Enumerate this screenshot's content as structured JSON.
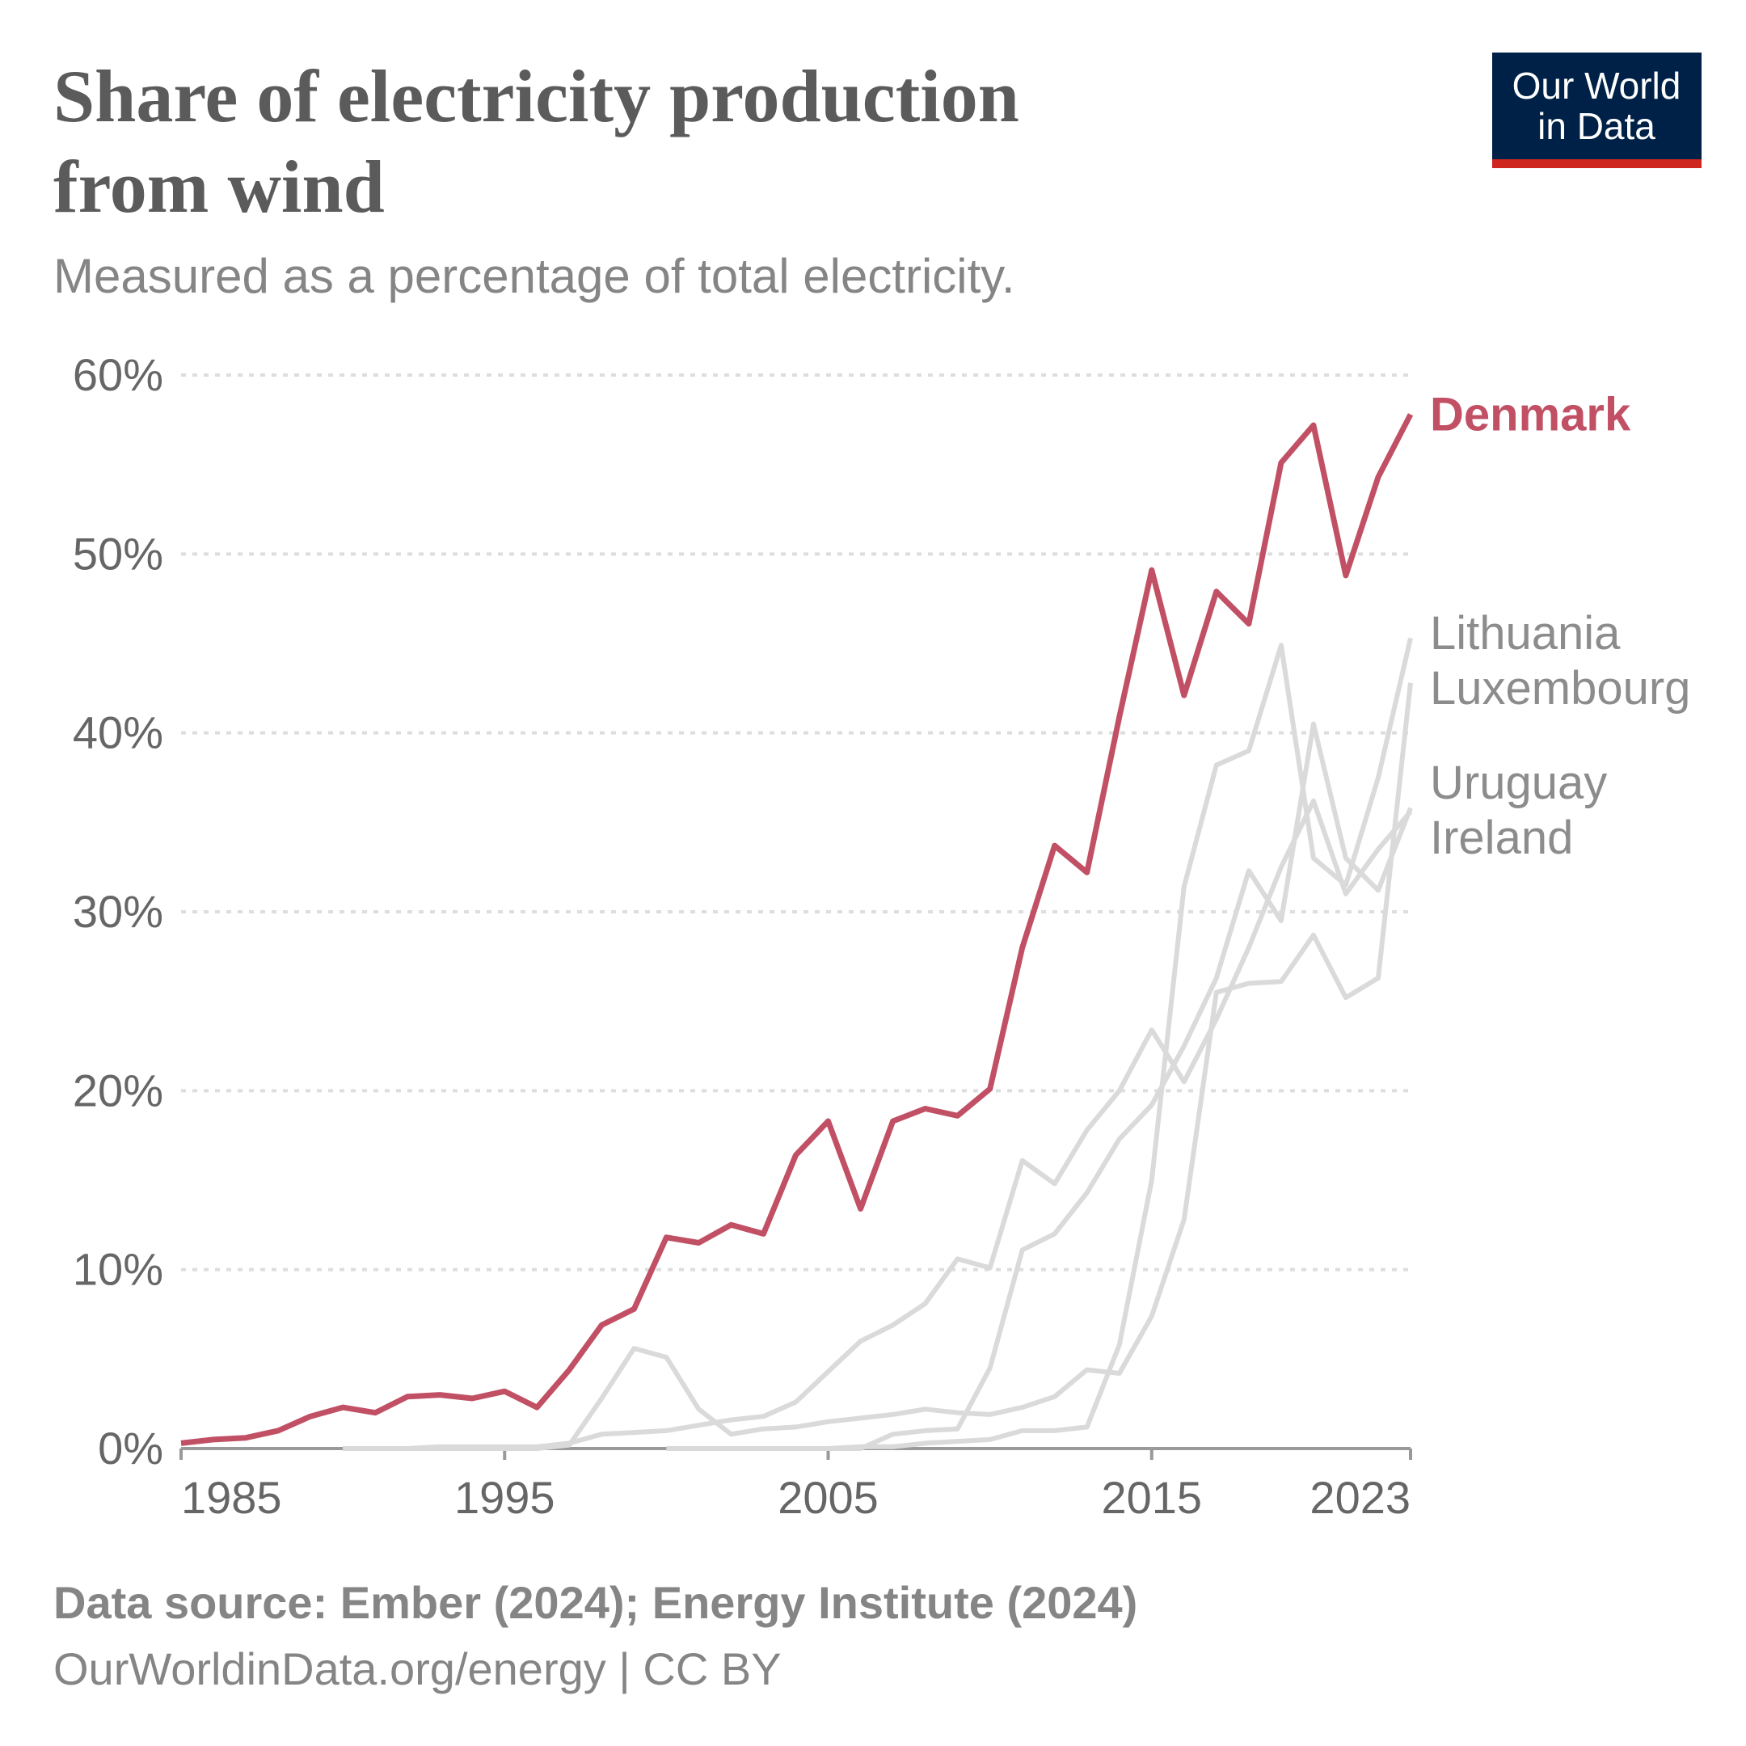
{
  "chart_data": {
    "type": "line",
    "title": "Share of electricity production from wind",
    "subtitle": "Measured as a percentage of total electricity.",
    "source": "Data source: Ember (2024); Energy Institute (2024)",
    "footer": "OurWorldinData.org/energy | CC BY",
    "logo": [
      "Our World",
      "in Data"
    ],
    "x": [
      1985,
      1986,
      1987,
      1988,
      1989,
      1990,
      1991,
      1992,
      1993,
      1994,
      1995,
      1996,
      1997,
      1998,
      1999,
      2000,
      2001,
      2002,
      2003,
      2004,
      2005,
      2006,
      2007,
      2008,
      2009,
      2010,
      2011,
      2012,
      2013,
      2014,
      2015,
      2016,
      2017,
      2018,
      2019,
      2020,
      2021,
      2022,
      2023
    ],
    "xlim": [
      1985,
      2023
    ],
    "xticks": [
      1985,
      1995,
      2005,
      2015,
      2023
    ],
    "ylim": [
      0,
      60
    ],
    "yticks": [
      {
        "value": 0,
        "label": "0%"
      },
      {
        "value": 10,
        "label": "10%"
      },
      {
        "value": 20,
        "label": "20%"
      },
      {
        "value": 30,
        "label": "30%"
      },
      {
        "value": 40,
        "label": "40%"
      },
      {
        "value": 50,
        "label": "50%"
      },
      {
        "value": 60,
        "label": "60%"
      }
    ],
    "grid": true,
    "series": [
      {
        "name": "Lithuania",
        "color": "#dadada",
        "label_color": "#8c8c8c",
        "values": [
          null,
          null,
          null,
          null,
          null,
          null,
          null,
          null,
          null,
          null,
          null,
          null,
          null,
          null,
          null,
          null,
          null,
          null,
          null,
          null,
          0,
          0.1,
          0.1,
          0.3,
          0.4,
          0.5,
          1.0,
          1.0,
          1.2,
          5.8,
          15.0,
          31.4,
          38.2,
          39.0,
          44.9,
          33.0,
          31.5,
          37.5,
          45.3
        ]
      },
      {
        "name": "Luxembourg",
        "color": "#dadada",
        "label_color": "#8c8c8c",
        "values": [
          null,
          null,
          null,
          null,
          null,
          0,
          0,
          0,
          0,
          0,
          0,
          0,
          0.2,
          2.8,
          5.6,
          5.1,
          2.2,
          0.8,
          1.1,
          1.2,
          1.5,
          1.7,
          1.9,
          2.2,
          2.0,
          1.9,
          2.3,
          2.9,
          4.4,
          4.2,
          7.4,
          12.8,
          25.5,
          26.0,
          26.1,
          28.7,
          25.2,
          26.3,
          42.8
        ]
      },
      {
        "name": "Uruguay",
        "color": "#dadada",
        "label_color": "#8c8c8c",
        "values": [
          null,
          null,
          null,
          null,
          null,
          null,
          null,
          null,
          null,
          null,
          null,
          null,
          null,
          null,
          null,
          0,
          0,
          0,
          0,
          0,
          0,
          0,
          0.8,
          1.0,
          1.1,
          4.5,
          11.1,
          12.0,
          14.3,
          17.3,
          19.2,
          22.5,
          26.3,
          32.3,
          29.5,
          40.5,
          33.0,
          31.2,
          35.8
        ]
      },
      {
        "name": "Ireland",
        "color": "#dadada",
        "label_color": "#8c8c8c",
        "values": [
          null,
          null,
          null,
          null,
          null,
          0,
          0,
          0,
          0.1,
          0.1,
          0.1,
          0.1,
          0.3,
          0.8,
          0.9,
          1.0,
          1.3,
          1.6,
          1.8,
          2.6,
          4.3,
          6.0,
          6.9,
          8.1,
          10.6,
          10.1,
          16.1,
          14.8,
          17.8,
          20.0,
          23.4,
          20.5,
          24.0,
          28.0,
          32.5,
          36.2,
          31.0,
          33.5,
          35.6
        ]
      },
      {
        "name": "Denmark",
        "color": "#c15065",
        "label_color": "#c15065",
        "values": [
          0.3,
          0.5,
          0.6,
          1.0,
          1.8,
          2.3,
          2.0,
          2.9,
          3.0,
          2.8,
          3.2,
          2.3,
          4.4,
          6.9,
          7.8,
          11.8,
          11.5,
          12.5,
          12.0,
          16.4,
          18.3,
          13.4,
          18.3,
          19.0,
          18.6,
          20.1,
          28.0,
          33.7,
          32.2,
          40.9,
          49.1,
          42.1,
          47.9,
          46.1,
          55.1,
          57.2,
          48.8,
          54.3,
          57.8
        ]
      }
    ]
  }
}
